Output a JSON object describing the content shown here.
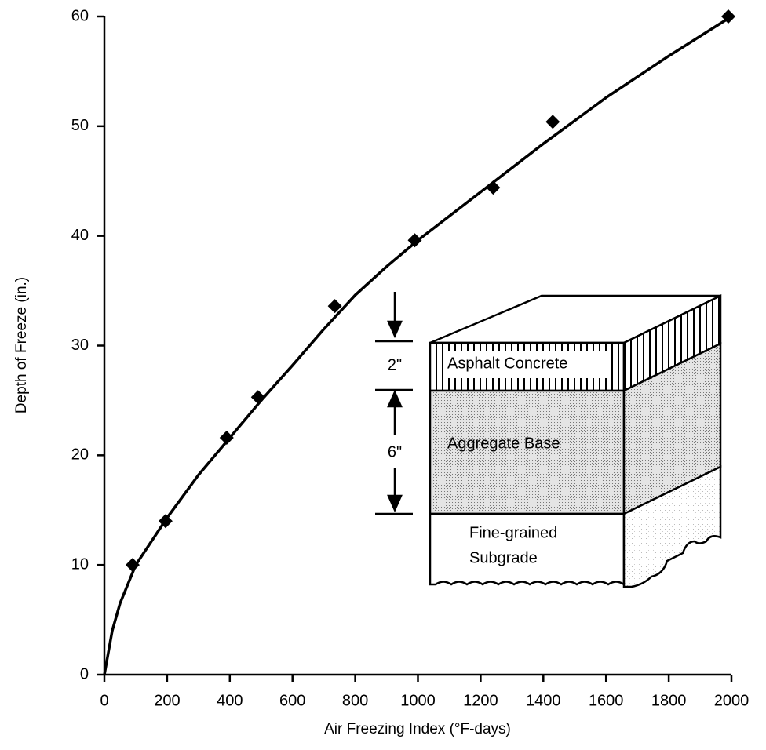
{
  "chart_data": {
    "type": "scatter",
    "x_label": "Air Freezing Index (°F-days)",
    "y_label": "Depth of Freeze (in.)",
    "xlim": [
      0,
      2000
    ],
    "ylim": [
      0,
      60
    ],
    "xticks": [
      0,
      200,
      400,
      600,
      800,
      1000,
      1200,
      1400,
      1600,
      1800,
      2000
    ],
    "yticks": [
      0,
      10,
      20,
      30,
      40,
      50,
      60
    ],
    "series": [
      {
        "color": "#000000",
        "marker": "diamond",
        "x": [
          90,
          195,
          390,
          490,
          735,
          990,
          1240,
          1430,
          1990
        ],
        "values": [
          10,
          14,
          21.6,
          25.3,
          33.6,
          39.6,
          44.4,
          50.4,
          60
        ]
      },
      {
        "color": "#000000",
        "line": true,
        "x": [
          0,
          25,
          50,
          100,
          200,
          300,
          400,
          500,
          600,
          700,
          800,
          900,
          1000,
          1200,
          1400,
          1600,
          1800,
          2000
        ],
        "values": [
          0,
          4,
          6.5,
          10,
          14.3,
          18.2,
          21.6,
          25,
          28.2,
          31.5,
          34.6,
          37.2,
          39.6,
          44,
          48.4,
          52.6,
          56.4,
          60
        ]
      }
    ],
    "annotations": {
      "asphalt": "Asphalt Concrete",
      "base": "Aggregate Base",
      "subgrade_1": "Fine-grained",
      "subgrade_2": "Subgrade",
      "asphalt_thickness": "2\"",
      "base_thickness": "6\""
    }
  }
}
